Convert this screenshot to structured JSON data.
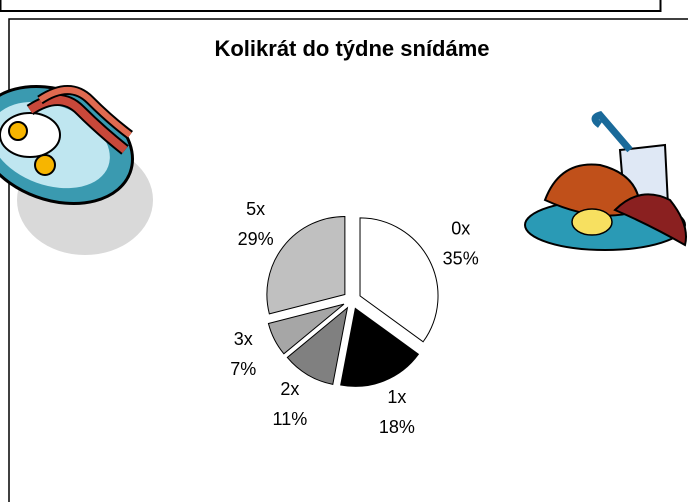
{
  "chart_data": {
    "type": "pie",
    "title": "Kolikrát do týdne snídáme",
    "categories": [
      "0x",
      "1x",
      "2x",
      "3x",
      "5x"
    ],
    "values": [
      35,
      18,
      11,
      7,
      29
    ],
    "value_labels": [
      "35%",
      "18%",
      "11%",
      "7%",
      "29%"
    ],
    "colors": [
      "#ffffff",
      "#000000",
      "#808080",
      "#a6a6a6",
      "#c0c0c0"
    ]
  }
}
